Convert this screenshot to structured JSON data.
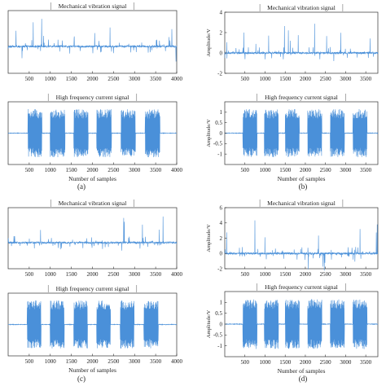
{
  "figure": {
    "panels": [
      {
        "id": "a",
        "label": "(a)"
      },
      {
        "id": "b",
        "label": "(b)"
      },
      {
        "id": "c",
        "label": "(c)"
      },
      {
        "id": "d",
        "label": "(d)"
      }
    ]
  },
  "chart_data": [
    {
      "panel": "a",
      "type": "line",
      "title": "Mechanical vibration signal",
      "xlabel": "",
      "ylabel": "",
      "xlim": [
        0,
        4000
      ],
      "xticks": [
        500,
        1000,
        1500,
        2000,
        2500,
        3000,
        3500,
        4000
      ],
      "yticks": [],
      "ylim": [
        -3,
        4
      ],
      "signal": "vibration",
      "series": [
        {
          "color": "#4a90d9"
        }
      ]
    },
    {
      "panel": "a",
      "type": "line",
      "title": "High frequency current signal",
      "xlabel": "Number of samples",
      "ylabel": "",
      "xlim": [
        0,
        4000
      ],
      "xticks": [
        500,
        1000,
        1500,
        2000,
        2500,
        3000,
        3500,
        4000
      ],
      "yticks": [],
      "ylim": [
        -1.5,
        1.5
      ],
      "signal": "current",
      "bursts": [
        [
          470,
          800
        ],
        [
          1000,
          1350
        ],
        [
          1560,
          1900
        ],
        [
          2100,
          2450
        ],
        [
          2680,
          3020
        ],
        [
          3250,
          3600
        ]
      ],
      "series": [
        {
          "color": "#4a90d9"
        }
      ]
    },
    {
      "panel": "b",
      "type": "line",
      "title": "Mechanical vibration signal",
      "xlabel": "",
      "ylabel": "Amplitude/V",
      "xlim": [
        0,
        3800
      ],
      "xticks": [
        500,
        1000,
        1500,
        2000,
        2500,
        3000,
        3500
      ],
      "yticks": [
        -2,
        0,
        2,
        4
      ],
      "ylim": [
        -2,
        4
      ],
      "signal": "vibration",
      "series": [
        {
          "color": "#4a90d9"
        }
      ]
    },
    {
      "panel": "b",
      "type": "line",
      "title": "High frequency current signal",
      "xlabel": "Number of samples",
      "ylabel": "Amplitude/V",
      "xlim": [
        0,
        3800
      ],
      "xticks": [
        500,
        1000,
        1500,
        2000,
        2500,
        3000,
        3500
      ],
      "yticks": [
        -1,
        -0.5,
        0,
        0.5,
        1
      ],
      "ylim": [
        -1.5,
        1.5
      ],
      "signal": "current",
      "bursts": [
        [
          450,
          800
        ],
        [
          980,
          1330
        ],
        [
          1500,
          1850
        ],
        [
          2060,
          2410
        ],
        [
          2620,
          2970
        ],
        [
          3180,
          3530
        ]
      ],
      "series": [
        {
          "color": "#4a90d9"
        }
      ]
    },
    {
      "panel": "c",
      "type": "line",
      "title": "Mechanical vibration signal",
      "xlabel": "",
      "ylabel": "",
      "xlim": [
        0,
        4000
      ],
      "xticks": [
        500,
        1000,
        1500,
        2000,
        2500,
        3000,
        3500,
        4000
      ],
      "yticks": [],
      "ylim": [
        -3,
        4
      ],
      "signal": "vibration",
      "series": [
        {
          "color": "#4a90d9"
        }
      ]
    },
    {
      "panel": "c",
      "type": "line",
      "title": "High frequency current signal",
      "xlabel": "Number of samples",
      "ylabel": "",
      "xlim": [
        0,
        4000
      ],
      "xticks": [
        500,
        1000,
        1500,
        2000,
        2500,
        3000,
        3500,
        4000
      ],
      "yticks": [],
      "ylim": [
        -1.5,
        1.5
      ],
      "signal": "current",
      "bursts": [
        [
          450,
          780
        ],
        [
          1000,
          1330
        ],
        [
          1560,
          1880
        ],
        [
          2100,
          2430
        ],
        [
          2660,
          2990
        ],
        [
          3220,
          3560
        ]
      ],
      "series": [
        {
          "color": "#4a90d9"
        }
      ]
    },
    {
      "panel": "d",
      "type": "line",
      "title": "Mechanical vibration signal",
      "xlabel": "",
      "ylabel": "Amplitude/V",
      "xlim": [
        0,
        3800
      ],
      "xticks": [
        500,
        1000,
        1500,
        2000,
        2500,
        3000,
        3500
      ],
      "yticks": [
        -2,
        0,
        2,
        4,
        6
      ],
      "ylim": [
        -2,
        6
      ],
      "signal": "vibration",
      "series": [
        {
          "color": "#4a90d9"
        }
      ]
    },
    {
      "panel": "d",
      "type": "line",
      "title": "High frequency current signal",
      "xlabel": "Number of samples",
      "ylabel": "Amplitude/V",
      "xlim": [
        0,
        3800
      ],
      "xticks": [
        500,
        1000,
        1500,
        2000,
        2500,
        3000,
        3500
      ],
      "yticks": [
        -1,
        -0.5,
        0,
        0.5,
        1
      ],
      "ylim": [
        -1.5,
        1.5
      ],
      "signal": "current",
      "bursts": [
        [
          450,
          800
        ],
        [
          980,
          1330
        ],
        [
          1500,
          1850
        ],
        [
          2060,
          2410
        ],
        [
          2620,
          2970
        ],
        [
          3180,
          3530
        ]
      ],
      "series": [
        {
          "color": "#4a90d9"
        }
      ]
    }
  ]
}
